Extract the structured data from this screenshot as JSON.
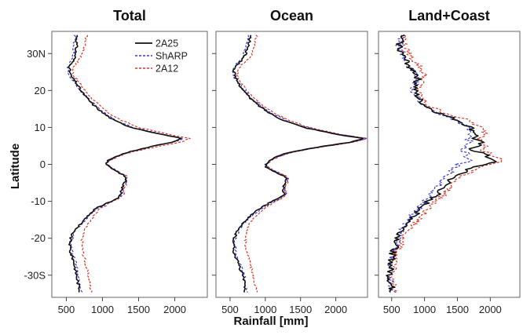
{
  "chart_data": {
    "type": "line",
    "ylabel": "Latitude",
    "xlabel": "Rainfall [mm]",
    "ylim": [
      -36,
      36
    ],
    "yticks": [
      {
        "value": 30,
        "label": "30N"
      },
      {
        "value": 20,
        "label": "20"
      },
      {
        "value": 10,
        "label": "10"
      },
      {
        "value": 0,
        "label": "0"
      },
      {
        "value": -10,
        "label": "-10"
      },
      {
        "value": -20,
        "label": "-20"
      },
      {
        "value": -30,
        "label": "-30S"
      }
    ],
    "legend": {
      "placement": "top-right of first panel",
      "entries": [
        {
          "name": "2A25",
          "color": "#111111",
          "dash": "solid"
        },
        {
          "name": "ShARP",
          "color": "#3a3ad8",
          "dash": "dashed"
        },
        {
          "name": "2A12",
          "color": "#d83a2a",
          "dash": "dashed"
        }
      ]
    },
    "latitudes": [
      35,
      32,
      29,
      26,
      24,
      22,
      20,
      18,
      16,
      14,
      12,
      10,
      8,
      7,
      6,
      5,
      4,
      3,
      2,
      1,
      0,
      -1,
      -2,
      -3,
      -4,
      -5,
      -6,
      -7,
      -8,
      -9,
      -10,
      -12,
      -14,
      -16,
      -18,
      -20,
      -22,
      -24,
      -26,
      -28,
      -30,
      -32,
      -35
    ],
    "panels": [
      {
        "title": "Total",
        "xlim": [
          300,
          2450
        ],
        "xticks": [
          500,
          1000,
          1500,
          2000
        ],
        "series": [
          {
            "name": "2A25",
            "values": [
              650,
              640,
              620,
              540,
              560,
              640,
              700,
              780,
              880,
              1000,
              1150,
              1400,
              1850,
              2100,
              1950,
              1700,
              1500,
              1300,
              1180,
              1080,
              1050,
              1120,
              1200,
              1300,
              1330,
              1310,
              1280,
              1260,
              1270,
              1220,
              1120,
              900,
              800,
              700,
              600,
              560,
              550,
              560,
              600,
              620,
              640,
              660,
              700
            ]
          },
          {
            "name": "ShARP",
            "values": [
              620,
              610,
              590,
              520,
              540,
              620,
              700,
              790,
              900,
              1020,
              1170,
              1420,
              1870,
              2120,
              1970,
              1720,
              1510,
              1310,
              1190,
              1090,
              1060,
              1130,
              1210,
              1320,
              1340,
              1320,
              1290,
              1270,
              1280,
              1230,
              1130,
              920,
              820,
              720,
              620,
              580,
              570,
              580,
              620,
              640,
              660,
              680,
              720
            ]
          },
          {
            "name": "2A12",
            "values": [
              780,
              760,
              700,
              590,
              600,
              680,
              760,
              850,
              950,
              1080,
              1250,
              1500,
              1950,
              2200,
              2080,
              1800,
              1560,
              1330,
              1200,
              1100,
              1060,
              1130,
              1220,
              1330,
              1350,
              1330,
              1310,
              1290,
              1300,
              1250,
              1150,
              960,
              880,
              800,
              740,
              720,
              720,
              730,
              760,
              780,
              800,
              820,
              850
            ]
          }
        ]
      },
      {
        "title": "Ocean",
        "xlim": [
          300,
          2450
        ],
        "xticks": [
          500,
          1000,
          1500,
          2000
        ],
        "series": [
          {
            "name": "2A25",
            "values": [
              790,
              760,
              700,
              560,
              560,
              620,
              690,
              780,
              900,
              1050,
              1250,
              1550,
              2050,
              2400,
              2200,
              1850,
              1550,
              1300,
              1150,
              1050,
              1000,
              1020,
              1120,
              1250,
              1300,
              1290,
              1260,
              1250,
              1280,
              1220,
              1100,
              920,
              780,
              670,
              600,
              560,
              550,
              560,
              600,
              640,
              680,
              700,
              720
            ]
          },
          {
            "name": "ShARP",
            "values": [
              760,
              730,
              680,
              540,
              550,
              620,
              700,
              800,
              920,
              1080,
              1280,
              1580,
              2080,
              2430,
              2230,
              1880,
              1570,
              1320,
              1170,
              1070,
              1010,
              1040,
              1140,
              1270,
              1320,
              1300,
              1280,
              1270,
              1300,
              1240,
              1120,
              940,
              800,
              690,
              620,
              580,
              570,
              580,
              620,
              660,
              700,
              720,
              740
            ]
          },
          {
            "name": "2A12",
            "values": [
              880,
              850,
              790,
              620,
              600,
              660,
              740,
              840,
              960,
              1120,
              1320,
              1620,
              2100,
              2450,
              2260,
              1900,
              1590,
              1330,
              1180,
              1080,
              1020,
              1060,
              1160,
              1290,
              1330,
              1310,
              1290,
              1280,
              1310,
              1260,
              1150,
              980,
              860,
              780,
              740,
              720,
              720,
              740,
              780,
              800,
              820,
              850,
              880
            ]
          }
        ]
      },
      {
        "title": "Land+Coast",
        "xlim": [
          300,
          2450
        ],
        "xticks": [
          500,
          1000,
          1500,
          2000
        ],
        "series": [
          {
            "name": "2A25",
            "values": [
              650,
              620,
              680,
              800,
              900,
              880,
              850,
              900,
              1000,
              1200,
              1500,
              1700,
              1800,
              1750,
              1850,
              1800,
              1700,
              1900,
              1950,
              2100,
              1900,
              1700,
              1600,
              1500,
              1400,
              1350,
              1300,
              1250,
              1200,
              1100,
              1050,
              950,
              850,
              750,
              650,
              600,
              560,
              520,
              500,
              480,
              470,
              480,
              520
            ]
          },
          {
            "name": "ShARP",
            "values": [
              640,
              610,
              670,
              780,
              880,
              860,
              830,
              880,
              980,
              1180,
              1480,
              1650,
              1700,
              1650,
              1700,
              1650,
              1550,
              1650,
              1600,
              1700,
              1500,
              1450,
              1400,
              1350,
              1300,
              1250,
              1200,
              1150,
              1100,
              1050,
              1000,
              900,
              800,
              720,
              640,
              600,
              560,
              520,
              500,
              480,
              470,
              490,
              530
            ]
          },
          {
            "name": "2A12",
            "values": [
              700,
              680,
              800,
              950,
              1000,
              950,
              900,
              950,
              1050,
              1300,
              1650,
              1850,
              1950,
              1850,
              1950,
              1950,
              1850,
              2000,
              2050,
              2200,
              2000,
              1800,
              1700,
              1600,
              1500,
              1450,
              1400,
              1350,
              1300,
              1250,
              1150,
              1050,
              950,
              850,
              750,
              680,
              620,
              580,
              540,
              520,
              500,
              510,
              540
            ]
          }
        ]
      }
    ]
  }
}
